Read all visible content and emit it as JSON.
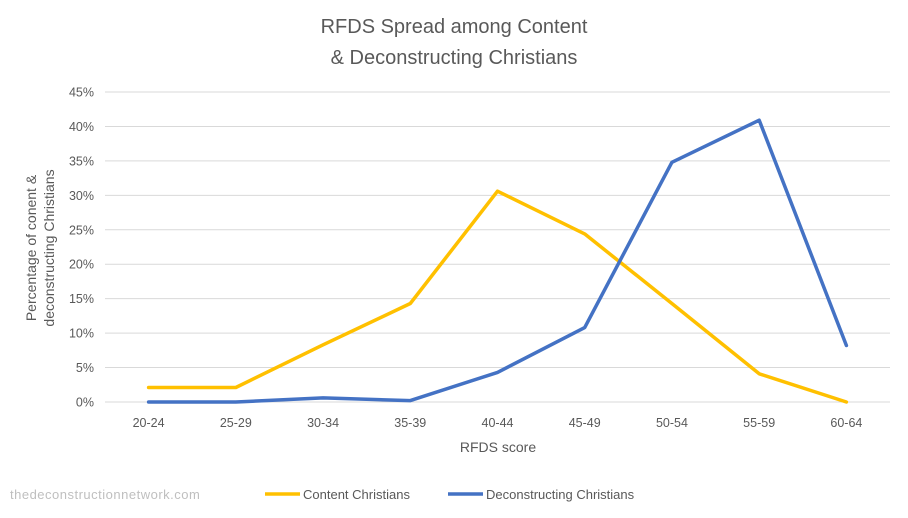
{
  "chart_data": {
    "type": "line",
    "title": [
      "RFDS Spread among Content",
      "& Deconstructing Christians"
    ],
    "xlabel": "RFDS score",
    "ylabel": [
      "Percentage of conent &",
      "deconstructing Christians"
    ],
    "categories": [
      "20-24",
      "25-29",
      "30-34",
      "35-39",
      "40-44",
      "45-49",
      "50-54",
      "55-59",
      "60-64"
    ],
    "ylim": [
      0,
      45
    ],
    "yticks": [
      0,
      5,
      10,
      15,
      20,
      25,
      30,
      35,
      40,
      45
    ],
    "ytick_labels": [
      "0%",
      "5%",
      "10%",
      "15%",
      "20%",
      "25%",
      "30%",
      "35%",
      "40%",
      "45%"
    ],
    "grid": true,
    "legend_position": "bottom",
    "series": [
      {
        "name": "Content Christians",
        "color": "#ffc000",
        "values": [
          2.1,
          2.1,
          8.3,
          14.3,
          30.6,
          24.4,
          14.3,
          4.1,
          0.0
        ]
      },
      {
        "name": "Deconstructing Christians",
        "color": "#4472c4",
        "values": [
          0.0,
          0.0,
          0.6,
          0.2,
          4.3,
          10.8,
          34.8,
          40.9,
          8.2
        ]
      }
    ]
  },
  "watermark": "thedeconstructionnetwork.com"
}
